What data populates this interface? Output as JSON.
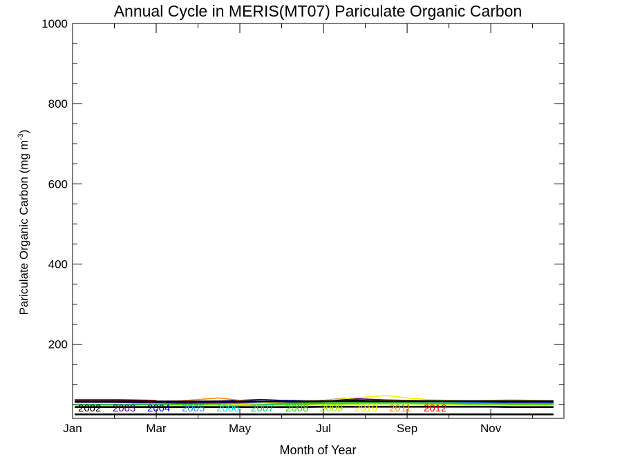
{
  "chart_data": {
    "type": "line",
    "title": "Annual Cycle in MERIS(MT07) Pariculate Organic Carbon",
    "xlabel": "Month of Year",
    "ylabel": "Pariculate Organic Carbon (mg m",
    "ylabel_sup": "-3",
    "ylabel_end": ")",
    "xlim": [
      1,
      12.75
    ],
    "ylim": [
      15,
      1000
    ],
    "x_ticks": [
      {
        "value": 1,
        "label": "Jan"
      },
      {
        "value": 3,
        "label": "Mar"
      },
      {
        "value": 5,
        "label": "May"
      },
      {
        "value": 7,
        "label": "Jul"
      },
      {
        "value": 9,
        "label": "Sep"
      },
      {
        "value": 11,
        "label": "Nov"
      }
    ],
    "y_ticks": [
      {
        "value": 200,
        "label": "200"
      },
      {
        "value": 400,
        "label": "400"
      },
      {
        "value": 600,
        "label": "600"
      },
      {
        "value": 800,
        "label": "800"
      },
      {
        "value": 1000,
        "label": "1000"
      }
    ],
    "x": [
      1.05,
      1.5,
      2,
      2.5,
      3,
      3.5,
      4,
      4.5,
      5,
      5.5,
      6,
      6.5,
      7,
      7.5,
      8,
      8.5,
      9,
      9.5,
      10,
      10.5,
      11,
      11.5,
      12,
      12.5
    ],
    "series": [
      {
        "name": "2002",
        "color": "#000000",
        "values": [
          55,
          55,
          55,
          54,
          54,
          53,
          53,
          52,
          52,
          52,
          53,
          54,
          56,
          62,
          60,
          58,
          57,
          56,
          56,
          55,
          55,
          55,
          55,
          55
        ]
      },
      {
        "name": "2003",
        "color": "#4b0082",
        "values": [
          56,
          56,
          56,
          55,
          55,
          54,
          54,
          54,
          55,
          56,
          57,
          58,
          60,
          65,
          63,
          61,
          60,
          59,
          58,
          58,
          57,
          57,
          57,
          57
        ]
      },
      {
        "name": "2004",
        "color": "#0000cd",
        "values": [
          57,
          57,
          57,
          56,
          56,
          56,
          57,
          58,
          60,
          62,
          60,
          59,
          58,
          58,
          58,
          58,
          57,
          57,
          56,
          56,
          56,
          56,
          56,
          56
        ]
      },
      {
        "name": "2005",
        "color": "#1e90ff",
        "values": [
          50,
          50,
          50,
          50,
          50,
          50,
          51,
          51,
          52,
          52,
          53,
          53,
          54,
          54,
          55,
          55,
          56,
          56,
          55,
          54,
          53,
          52,
          52,
          52
        ]
      },
      {
        "name": "2006",
        "color": "#00e5e5",
        "values": [
          48,
          48,
          48,
          48,
          48,
          49,
          49,
          50,
          50,
          51,
          51,
          52,
          52,
          53,
          53,
          53,
          53,
          52,
          52,
          51,
          51,
          50,
          50,
          50
        ]
      },
      {
        "name": "2007",
        "color": "#00cc66",
        "values": [
          47,
          47,
          47,
          47,
          47,
          48,
          48,
          48,
          49,
          49,
          50,
          50,
          51,
          51,
          52,
          52,
          52,
          51,
          51,
          50,
          50,
          49,
          49,
          49
        ]
      },
      {
        "name": "2008",
        "color": "#33cc00",
        "values": [
          49,
          49,
          49,
          49,
          49,
          50,
          50,
          51,
          51,
          52,
          52,
          53,
          53,
          54,
          54,
          54,
          54,
          53,
          53,
          52,
          52,
          51,
          51,
          51
        ]
      },
      {
        "name": "2009",
        "color": "#99e600",
        "values": [
          45,
          45,
          45,
          45,
          46,
          46,
          46,
          47,
          47,
          48,
          48,
          49,
          50,
          50,
          51,
          51,
          51,
          50,
          50,
          49,
          49,
          48,
          48,
          48
        ]
      },
      {
        "name": "2010",
        "color": "#f2f200",
        "values": [
          46,
          46,
          46,
          46,
          47,
          47,
          47,
          48,
          50,
          52,
          55,
          58,
          60,
          64,
          68,
          72,
          66,
          62,
          60,
          58,
          60,
          62,
          60,
          58
        ]
      },
      {
        "name": "2011",
        "color": "#ff8c00",
        "values": [
          58,
          58,
          58,
          58,
          57,
          58,
          62,
          66,
          60,
          57,
          56,
          56,
          57,
          58,
          59,
          60,
          60,
          59,
          58,
          58,
          58,
          58,
          58,
          58
        ]
      },
      {
        "name": "2012",
        "color": "#ff0000",
        "values": [
          62,
          62,
          62,
          61,
          60,
          null,
          null,
          null,
          null,
          null,
          null,
          null,
          null,
          null,
          null,
          null,
          null,
          null,
          null,
          null,
          null,
          null,
          null,
          null
        ]
      },
      {
        "name": "",
        "color": "#000000",
        "values": [
          25,
          25,
          25,
          25,
          25,
          25,
          25,
          25,
          25,
          25,
          25,
          25,
          25,
          25,
          25,
          25,
          25,
          25,
          25,
          25,
          25,
          25,
          25,
          25
        ]
      },
      {
        "name": "",
        "color": "#000000",
        "values": [
          43,
          43,
          43,
          43,
          43,
          43,
          43,
          43,
          43,
          43,
          43,
          43,
          44,
          44,
          44,
          44,
          44,
          44,
          44,
          44,
          44,
          43,
          43,
          43
        ]
      },
      {
        "name": "",
        "color": "#000000",
        "values": [
          58,
          58,
          58,
          58,
          57,
          57,
          57,
          57,
          57,
          57,
          57,
          57,
          58,
          58,
          58,
          58,
          58,
          58,
          58,
          58,
          58,
          58,
          58,
          58
        ]
      }
    ],
    "grid": false,
    "legend_placement": "bottom-left-inside"
  }
}
